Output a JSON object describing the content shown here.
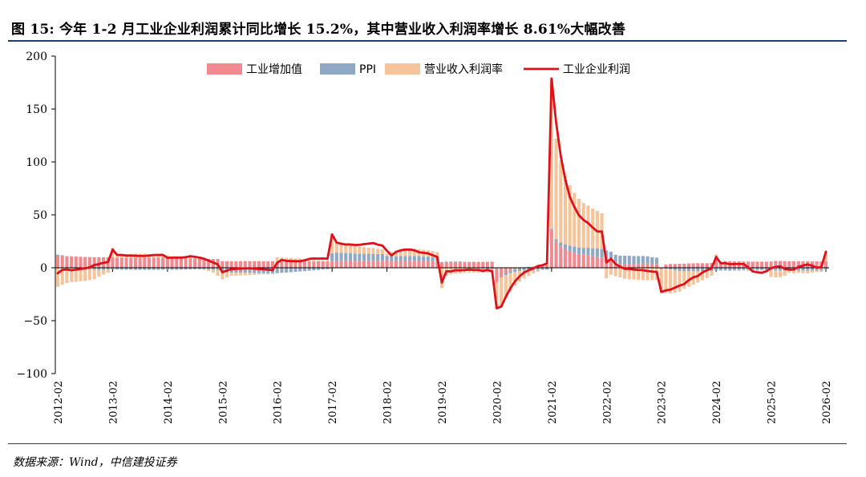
{
  "header": {
    "title": "图 15:  今年 1-2 月工业企业利润累计同比增长 15.2%，其中营业收入利润率增长 8.61%大幅改善"
  },
  "footer": {
    "source": "数据来源：Wind，中信建投证券"
  },
  "colors": {
    "industrial_value_added": "#f08a8e",
    "ppi": "#8fa9c4",
    "margin": "#f6c49a",
    "profit": "#e0101a",
    "rule": "#1f3e6e"
  },
  "chart_data": {
    "type": "bar+line",
    "title": "今年 1-2 月工业企业利润累计同比增长 15.2%，其中营业收入利润率增长 8.61%大幅改善",
    "xlabel": "",
    "ylabel": "",
    "ylim": [
      -100,
      200
    ],
    "yticks": [
      -100,
      -50,
      0,
      50,
      100,
      150,
      200
    ],
    "ytick_labels": [
      "−100",
      "−50",
      "0",
      "50",
      "100",
      "150",
      "200"
    ],
    "x_start": "2012-02",
    "x_end": "2026-02",
    "xtick_labels": [
      "2012-02",
      "2013-02",
      "2014-02",
      "2015-02",
      "2016-02",
      "2017-02",
      "2018-02",
      "2019-02",
      "2020-02",
      "2021-02",
      "2022-02",
      "2023-02",
      "2024-02",
      "2025-02",
      "2026-02"
    ],
    "legend": [
      "工业增加值",
      "PPI",
      "营业收入利润率",
      "工业企业利润"
    ],
    "legend_position": "top-center",
    "stacked": true,
    "series": [
      {
        "name": "工业增加值",
        "kind": "bar",
        "values": [
          11.4,
          11.6,
          11.0,
          10.8,
          10.6,
          10.4,
          10.2,
          10.1,
          10.0,
          10.0,
          10.0,
          10.0,
          9.9,
          9.5,
          9.4,
          9.4,
          9.3,
          9.3,
          9.3,
          9.4,
          9.5,
          9.6,
          9.7,
          9.7,
          8.7,
          8.7,
          8.7,
          8.7,
          8.8,
          8.8,
          8.6,
          8.5,
          8.5,
          8.4,
          8.3,
          8.3,
          6.3,
          6.2,
          6.2,
          6.1,
          6.2,
          6.3,
          6.3,
          6.2,
          6.2,
          6.1,
          6.1,
          6.1,
          5.4,
          5.8,
          5.8,
          5.9,
          6.0,
          6.0,
          6.0,
          6.0,
          6.0,
          6.0,
          6.0,
          6.0,
          6.3,
          6.8,
          6.7,
          6.7,
          6.9,
          6.8,
          6.7,
          6.7,
          6.7,
          6.7,
          6.6,
          6.6,
          7.2,
          6.8,
          6.9,
          6.9,
          6.8,
          6.7,
          6.6,
          6.5,
          6.4,
          6.4,
          6.2,
          6.2,
          5.3,
          5.6,
          5.6,
          5.6,
          5.7,
          5.6,
          5.5,
          5.6,
          5.6,
          5.6,
          5.6,
          5.7,
          -13.5,
          -8.4,
          -4.9,
          -2.8,
          -1.3,
          -0.4,
          0.4,
          0.9,
          1.2,
          1.8,
          2.3,
          2.8,
          35.1,
          24.5,
          20.3,
          17.8,
          15.9,
          14.4,
          13.1,
          12.3,
          11.8,
          10.9,
          10.1,
          9.6,
          7.5,
          6.5,
          4.0,
          3.3,
          3.4,
          3.5,
          3.5,
          3.6,
          3.9,
          4.0,
          3.8,
          3.6,
          -0.8,
          3.0,
          3.6,
          3.6,
          3.8,
          3.9,
          4.1,
          4.2,
          4.3,
          4.3,
          4.3,
          4.6,
          7.0,
          4.5,
          6.3,
          6.2,
          6.0,
          6.0,
          5.9,
          5.8,
          5.8,
          5.8,
          5.8,
          5.8,
          5.9,
          6.5,
          6.4,
          6.3,
          6.2,
          6.2,
          6.2,
          6.1,
          6.1,
          6.0,
          6.0,
          5.9,
          6.3
        ]
      },
      {
        "name": "PPI",
        "kind": "bar",
        "values": [
          1.0,
          0.3,
          -0.1,
          -0.5,
          -0.9,
          -1.2,
          -1.4,
          -1.6,
          -1.8,
          -1.9,
          -1.9,
          -1.7,
          -1.6,
          -1.7,
          -1.8,
          -1.9,
          -1.9,
          -2.0,
          -2.0,
          -2.0,
          -2.0,
          -2.0,
          -1.9,
          -1.9,
          -1.8,
          -1.9,
          -1.9,
          -1.8,
          -1.7,
          -1.6,
          -1.5,
          -1.5,
          -1.6,
          -1.7,
          -1.8,
          -1.9,
          -4.5,
          -4.6,
          -4.6,
          -4.6,
          -4.6,
          -4.7,
          -4.8,
          -5.0,
          -5.1,
          -5.2,
          -5.2,
          -5.2,
          -5.1,
          -4.8,
          -4.5,
          -4.2,
          -3.8,
          -3.5,
          -3.2,
          -2.8,
          -2.5,
          -2.1,
          -1.7,
          -1.4,
          7.3,
          7.5,
          7.3,
          7.0,
          6.9,
          6.7,
          6.6,
          6.5,
          6.5,
          6.4,
          6.4,
          6.3,
          4.0,
          3.9,
          4.0,
          4.1,
          4.3,
          4.4,
          4.5,
          4.5,
          4.4,
          4.1,
          3.8,
          3.5,
          0.1,
          0.2,
          0.3,
          0.3,
          0.2,
          0.0,
          -0.2,
          -0.4,
          -0.6,
          -0.9,
          -1.1,
          -1.1,
          -0.3,
          -0.7,
          -1.9,
          -2.3,
          -2.6,
          -2.7,
          -2.5,
          -2.4,
          -2.2,
          -2.1,
          -1.9,
          -1.8,
          1.6,
          2.4,
          3.6,
          4.4,
          5.1,
          5.6,
          6.1,
          6.5,
          7.1,
          7.5,
          8.1,
          8.1,
          8.8,
          8.6,
          8.3,
          8.2,
          8.0,
          7.8,
          7.6,
          7.4,
          7.2,
          6.8,
          6.2,
          5.9,
          -0.4,
          -0.8,
          -1.6,
          -2.3,
          -3.1,
          -3.3,
          -3.3,
          -3.3,
          -3.3,
          -3.2,
          -3.1,
          -3.0,
          -2.6,
          -2.6,
          -2.5,
          -2.4,
          -2.2,
          -2.1,
          -2.1,
          -2.1,
          -2.1,
          -2.2,
          -2.1,
          -2.2,
          -2.4,
          -2.5,
          -2.6,
          -2.7,
          -2.8,
          -2.8,
          -2.8,
          -2.8,
          -2.7,
          -2.7,
          -2.6,
          -2.6,
          -1.5
        ]
      },
      {
        "name": "营业收入利润率",
        "kind": "bar",
        "values": [
          -17.9,
          -16.0,
          -14.3,
          -13.1,
          -12.3,
          -11.5,
          -11.0,
          -10.0,
          -9.0,
          -6.5,
          -4.5,
          -3.0,
          8.9,
          3.5,
          3.0,
          3.4,
          3.8,
          4.0,
          4.0,
          4.1,
          3.4,
          2.4,
          1.9,
          1.6,
          3.1,
          1.2,
          1.5,
          1.6,
          2.1,
          3.0,
          1.8,
          0.7,
          -0.2,
          -1.4,
          -2.8,
          -5.8,
          -6.5,
          -4.5,
          -3.0,
          -2.8,
          -2.7,
          -2.5,
          -2.1,
          -1.7,
          -1.3,
          -1.0,
          -1.0,
          -1.0,
          4.6,
          3.9,
          3.5,
          3.3,
          2.8,
          2.7,
          2.3,
          1.8,
          1.4,
          1.0,
          1.1,
          1.2,
          18.3,
          10.5,
          9.2,
          8.3,
          7.4,
          6.7,
          6.5,
          6.3,
          5.8,
          5.6,
          5.0,
          4.7,
          2.3,
          4.4,
          5.4,
          5.9,
          7.0,
          7.1,
          6.8,
          6.5,
          6.3,
          6.0,
          5.8,
          5.1,
          -19.2,
          -7.6,
          -6.3,
          -5.5,
          -5.3,
          -4.8,
          -4.5,
          -4.3,
          -4.0,
          -3.8,
          -3.4,
          -3.3,
          -24.6,
          -28.2,
          -21.6,
          -17.2,
          -13.1,
          -9.9,
          -7.5,
          -5.4,
          -3.1,
          -1.7,
          0.2,
          1.7,
          142.2,
          95.1,
          77.4,
          65.3,
          57.0,
          50.8,
          46.0,
          42.3,
          39.9,
          37.5,
          35.6,
          33.8,
          -10.0,
          -6.5,
          -8.0,
          -9.0,
          -10.5,
          -11.0,
          -11.2,
          -11.5,
          -11.8,
          -11.8,
          -11.7,
          -11.6,
          -21.7,
          -23.2,
          -22.4,
          -21.1,
          -19.5,
          -16.6,
          -14.6,
          -12.6,
          -10.7,
          -8.6,
          -6.6,
          -4.6,
          5.7,
          0.5,
          -0.2,
          -0.8,
          -0.9,
          -0.9,
          -0.6,
          -0.8,
          -0.9,
          -0.8,
          -0.5,
          -0.8,
          -6.3,
          -6.5,
          -6.4,
          -4.9,
          -2.0,
          -2.4,
          -2.0,
          -2.3,
          -2.6,
          -1.8,
          -1.4,
          -1.3,
          8.6
        ]
      },
      {
        "name": "工业企业利润",
        "kind": "line",
        "values": [
          -5.2,
          -2.0,
          -1.6,
          -2.4,
          -1.8,
          -1.1,
          -0.6,
          0.5,
          2.6,
          3.5,
          4.7,
          5.3,
          17.2,
          12.1,
          12.1,
          11.5,
          11.5,
          11.3,
          11.2,
          11.2,
          11.5,
          12.0,
          12.1,
          12.2,
          9.4,
          9.6,
          9.6,
          9.6,
          10.0,
          10.9,
          10.3,
          9.6,
          8.5,
          6.8,
          5.0,
          3.3,
          -4.2,
          -2.6,
          -1.3,
          -1.1,
          -0.8,
          -0.6,
          -0.5,
          -0.9,
          -1.2,
          -1.5,
          -1.8,
          -2.3,
          4.8,
          7.4,
          6.5,
          6.4,
          6.2,
          6.2,
          7.0,
          8.4,
          8.8,
          8.6,
          8.8,
          8.5,
          31.5,
          23.8,
          22.7,
          22.0,
          22.0,
          21.5,
          21.7,
          22.3,
          22.8,
          23.3,
          21.9,
          21.0,
          16.1,
          11.6,
          15.0,
          16.5,
          17.2,
          17.2,
          16.5,
          14.7,
          14.1,
          13.6,
          11.8,
          10.3,
          -14.0,
          -3.3,
          -3.4,
          -2.3,
          -2.4,
          -2.2,
          -1.7,
          -2.1,
          -2.1,
          -2.9,
          -2.1,
          -3.3,
          -38.3,
          -36.7,
          -27.4,
          -19.3,
          -12.8,
          -8.1,
          -4.4,
          -2.4,
          -0.6,
          1.6,
          2.4,
          4.1,
          178.9,
          137.3,
          106.0,
          83.4,
          66.9,
          57.3,
          49.5,
          45.2,
          42.2,
          38.0,
          34.3,
          34.3,
          5.0,
          8.5,
          3.5,
          1.0,
          -1.0,
          -1.1,
          -1.7,
          -2.1,
          -2.3,
          -3.0,
          -3.6,
          -4.0,
          -22.9,
          -21.4,
          -20.6,
          -18.8,
          -16.8,
          -15.5,
          -11.7,
          -9.0,
          -7.8,
          -4.4,
          -2.3,
          -0.5,
          10.2,
          4.3,
          4.3,
          3.4,
          3.5,
          3.6,
          3.6,
          0.5,
          -3.5,
          -4.3,
          -4.7,
          -3.3,
          -0.3,
          0.8,
          1.4,
          -1.1,
          -1.8,
          -1.7,
          0.9,
          2.1,
          3.2,
          1.9,
          0.1,
          0.6,
          15.2
        ]
      }
    ]
  }
}
